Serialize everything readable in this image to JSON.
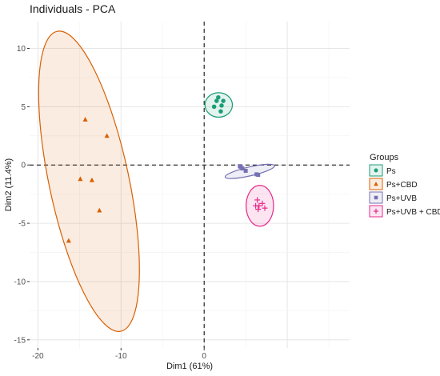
{
  "chart_data": {
    "type": "scatter",
    "title": "Individuals - PCA",
    "xlabel": "Dim1 (61%)",
    "ylabel": "Dim2 (11.4%)",
    "xlim": [
      -21,
      17.5
    ],
    "ylim": [
      -15.7,
      12.3
    ],
    "xticks": [
      -20,
      -10,
      0
    ],
    "yticks": [
      -15,
      -10,
      -5,
      0,
      5,
      10
    ],
    "grid": true,
    "reference_lines": {
      "x": 0,
      "y": 0,
      "style": "dashed"
    },
    "legend": {
      "title": "Groups",
      "position": "right"
    },
    "series": [
      {
        "name": "Ps",
        "color": "#1b9e77",
        "marker": "circle",
        "points": [
          [
            1.5,
            5.5
          ],
          [
            2.1,
            5.1
          ],
          [
            1.2,
            5.0
          ],
          [
            2.0,
            4.6
          ],
          [
            2.3,
            5.5
          ],
          [
            1.7,
            5.8
          ]
        ],
        "ellipse": {
          "cx": 1.75,
          "cy": 5.15,
          "rx": 1.65,
          "ry": 1.05,
          "angle": 0
        }
      },
      {
        "name": "Ps+CBD",
        "color": "#d95f02",
        "marker": "triangle",
        "points": [
          [
            -14.3,
            3.9
          ],
          [
            -11.7,
            2.5
          ],
          [
            -14.9,
            -1.2
          ],
          [
            -13.5,
            -1.3
          ],
          [
            -12.6,
            -3.9
          ],
          [
            -16.3,
            -6.5
          ]
        ],
        "ellipse": {
          "cx": -13.85,
          "cy": -1.4,
          "rx": 4.8,
          "ry": 13.15,
          "angle": -12
        }
      },
      {
        "name": "Ps+UVB",
        "color": "#7570b3",
        "marker": "square",
        "points": [
          [
            4.3,
            -0.1
          ],
          [
            4.6,
            -0.3
          ],
          [
            5.0,
            -0.5
          ],
          [
            6.3,
            -0.8
          ],
          [
            6.5,
            -0.85
          ],
          [
            4.4,
            -0.15
          ]
        ],
        "ellipse": {
          "cx": 5.5,
          "cy": -0.55,
          "rx": 3.05,
          "ry": 0.38,
          "angle": -13
        }
      },
      {
        "name": "Ps+UVB + CBD",
        "color": "#e7298a",
        "marker": "plus",
        "points": [
          [
            6.4,
            -3.0
          ],
          [
            7.0,
            -3.3
          ],
          [
            6.2,
            -3.5
          ],
          [
            6.5,
            -3.8
          ],
          [
            7.3,
            -3.7
          ],
          [
            6.6,
            -3.5
          ]
        ],
        "ellipse": {
          "cx": 6.7,
          "cy": -3.5,
          "rx": 1.65,
          "ry": 1.75,
          "angle": 0
        }
      }
    ]
  }
}
